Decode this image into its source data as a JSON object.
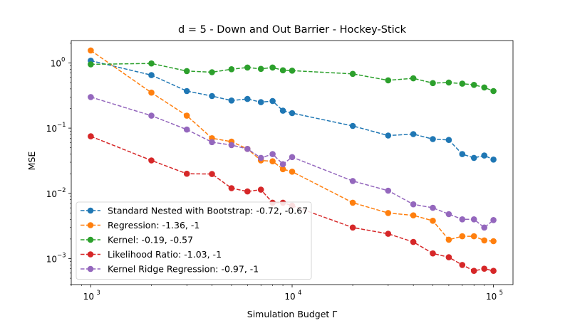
{
  "chart_data": {
    "type": "line",
    "title": "d = 5 - Down and Out Barrier - Hockey-Stick",
    "xlabel": "Simulation Budget Γ",
    "ylabel": "MSE",
    "xscale": "log",
    "yscale": "log",
    "xlim": [
      800,
      125000
    ],
    "ylim": [
      0.0004,
      2.2
    ],
    "grid": false,
    "legend_position": "lower-left",
    "x_ticks": [
      {
        "value": 1000,
        "base": "10",
        "exp": "3"
      },
      {
        "value": 10000,
        "base": "10",
        "exp": "4"
      },
      {
        "value": 100000,
        "base": "10",
        "exp": "5"
      }
    ],
    "y_ticks": [
      {
        "value": 0.001,
        "base": "10",
        "exp": "−3"
      },
      {
        "value": 0.01,
        "base": "10",
        "exp": "−2"
      },
      {
        "value": 0.1,
        "base": "10",
        "exp": "−1"
      },
      {
        "value": 1,
        "base": "10",
        "exp": "0"
      }
    ],
    "x": [
      1000,
      2000,
      3000,
      4000,
      5000,
      6000,
      7000,
      8000,
      9000,
      10000,
      20000,
      30000,
      40000,
      50000,
      60000,
      70000,
      80000,
      90000,
      100000
    ],
    "series": [
      {
        "name": "Standard Nested with Bootstrap: -0.72, -0.67",
        "color": "#1f77b4",
        "values": [
          1.08,
          0.65,
          0.37,
          0.31,
          0.265,
          0.28,
          0.25,
          0.26,
          0.185,
          0.17,
          0.108,
          0.077,
          0.081,
          0.068,
          0.066,
          0.04,
          0.035,
          0.038,
          0.033
        ]
      },
      {
        "name": "Regression: -1.36, -1",
        "color": "#ff7f0e",
        "values": [
          1.55,
          0.35,
          0.155,
          0.07,
          0.062,
          0.048,
          0.032,
          0.031,
          0.0235,
          0.0215,
          0.0072,
          0.005,
          0.0046,
          0.0038,
          0.00195,
          0.0022,
          0.0022,
          0.0019,
          0.00185
        ]
      },
      {
        "name": "Kernel: -0.19, -0.57",
        "color": "#2ca02c",
        "values": [
          0.95,
          0.98,
          0.75,
          0.72,
          0.8,
          0.85,
          0.81,
          0.85,
          0.77,
          0.76,
          0.68,
          0.54,
          0.58,
          0.49,
          0.5,
          0.48,
          0.46,
          0.42,
          0.37
        ]
      },
      {
        "name": "Likelihood Ratio: -1.03, -1",
        "color": "#d62728",
        "values": [
          0.075,
          0.032,
          0.02,
          0.0198,
          0.012,
          0.0107,
          0.0114,
          0.0072,
          0.0072,
          0.0065,
          0.003,
          0.0024,
          0.0018,
          0.0012,
          0.00105,
          0.0008,
          0.00065,
          0.0007,
          0.00065
        ]
      },
      {
        "name": "Kernel Ridge Regression: -0.97, -1",
        "color": "#9467bd",
        "values": [
          0.3,
          0.155,
          0.095,
          0.061,
          0.055,
          0.048,
          0.035,
          0.04,
          0.028,
          0.036,
          0.0155,
          0.011,
          0.0068,
          0.006,
          0.0048,
          0.004,
          0.004,
          0.003,
          0.0039
        ]
      }
    ]
  }
}
